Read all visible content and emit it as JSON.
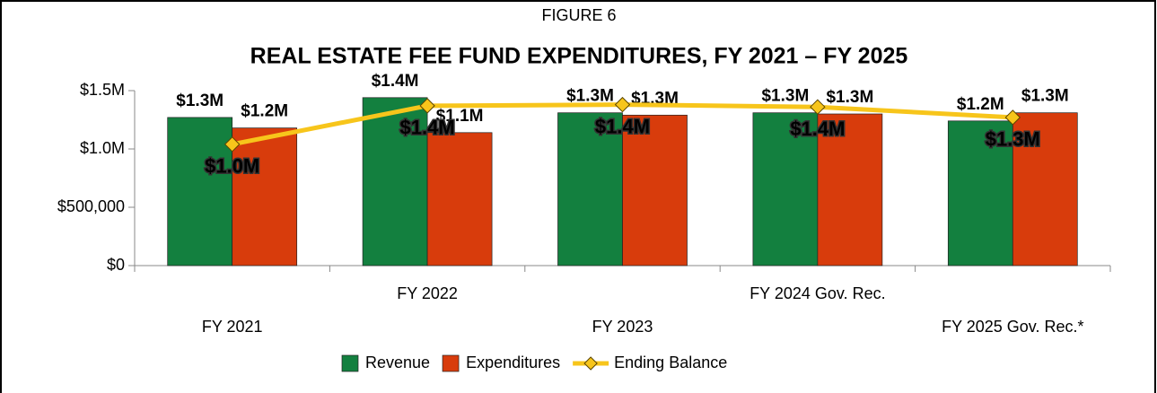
{
  "chart_data": {
    "type": "combo",
    "figure_label": "FIGURE 6",
    "title": "REAL ESTATE FEE FUND EXPENDITURES, FY 2021 – FY 2025",
    "categories": [
      "FY 2021",
      "FY 2022",
      "FY 2023",
      "FY 2024 Gov. Rec.",
      "FY 2025 Gov. Rec.*"
    ],
    "series": [
      {
        "name": "Revenue",
        "type": "bar",
        "color": "#13803f",
        "values": [
          1270000,
          1440000,
          1310000,
          1310000,
          1240000
        ],
        "value_labels": [
          "$1.3M",
          "$1.4M",
          "$1.3M",
          "$1.3M",
          "$1.2M"
        ]
      },
      {
        "name": "Expenditures",
        "type": "bar",
        "color": "#d83c0c",
        "values": [
          1180000,
          1140000,
          1290000,
          1300000,
          1310000
        ],
        "value_labels": [
          "$1.2M",
          "$1.1M",
          "$1.3M",
          "$1.3M",
          "$1.3M"
        ]
      },
      {
        "name": "Ending Balance",
        "type": "line",
        "color": "#f7c51b",
        "values": [
          1040000,
          1370000,
          1380000,
          1360000,
          1270000
        ],
        "value_labels": [
          "$1.0M",
          "$1.4M",
          "$1.4M",
          "$1.4M",
          "$1.3M"
        ]
      }
    ],
    "ylim": [
      0,
      1500000
    ],
    "yticks": [
      {
        "value": 0,
        "label": "$0"
      },
      {
        "value": 500000,
        "label": "$500,000"
      },
      {
        "value": 1000000,
        "label": "$1.0M"
      },
      {
        "value": 1500000,
        "label": "$1.5M"
      }
    ],
    "legend": "bottom"
  }
}
